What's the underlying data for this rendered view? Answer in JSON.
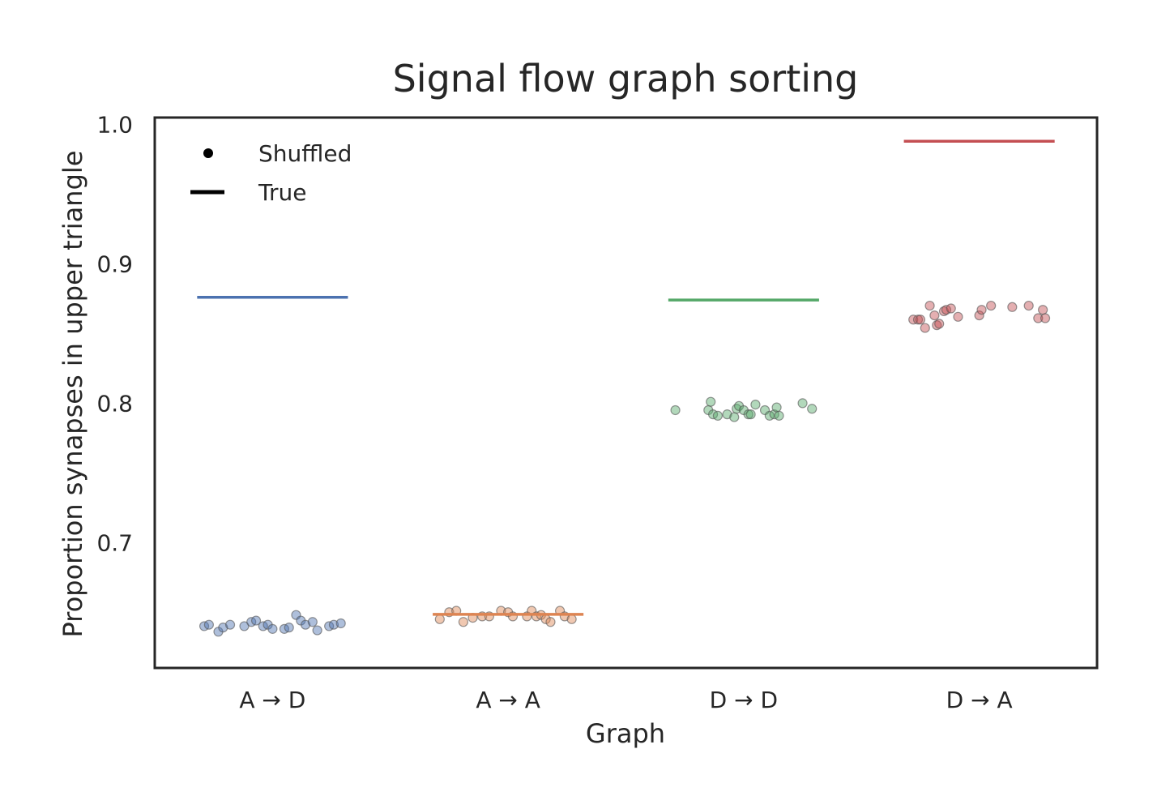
{
  "chart_data": {
    "type": "scatter",
    "title": "Signal flow graph sorting",
    "xlabel": "Graph",
    "ylabel": "Proportion synapses in upper triangle",
    "categories": [
      "A → D",
      "A → A",
      "D → D",
      "D → A"
    ],
    "ylim": [
      0.61,
      1.005
    ],
    "yticks": [
      0.7,
      0.8,
      0.9,
      1.0
    ],
    "ytick_labels": [
      "0.7",
      "0.8",
      "0.9",
      "1.0"
    ],
    "grid": false,
    "legend": {
      "placement": "top-left",
      "entries": [
        {
          "label": "Shuffled",
          "marker": "dot"
        },
        {
          "label": "True",
          "marker": "line"
        }
      ]
    },
    "colors": [
      "#4c72b0",
      "#dd8452",
      "#55a868",
      "#c44e52"
    ],
    "true_values": [
      0.876,
      0.6485,
      0.874,
      0.988
    ],
    "shuffled": [
      {
        "category": "A → D",
        "offsets": [
          -0.29,
          -0.27,
          -0.23,
          -0.21,
          -0.18,
          -0.12,
          -0.09,
          -0.07,
          -0.04,
          -0.02,
          0.0,
          0.05,
          0.07,
          0.1,
          0.12,
          0.14,
          0.17,
          0.19,
          0.24,
          0.26,
          0.29
        ],
        "values": [
          0.64,
          0.641,
          0.636,
          0.639,
          0.641,
          0.64,
          0.643,
          0.644,
          0.64,
          0.641,
          0.638,
          0.638,
          0.639,
          0.648,
          0.644,
          0.641,
          0.643,
          0.637,
          0.64,
          0.641,
          0.642
        ]
      },
      {
        "category": "A → A",
        "offsets": [
          -0.29,
          -0.25,
          -0.22,
          -0.19,
          -0.15,
          -0.11,
          -0.08,
          -0.03,
          0.0,
          0.02,
          0.08,
          0.1,
          0.12,
          0.14,
          0.16,
          0.18,
          0.22,
          0.24,
          0.27
        ],
        "values": [
          0.645,
          0.65,
          0.651,
          0.643,
          0.646,
          0.647,
          0.647,
          0.651,
          0.65,
          0.647,
          0.647,
          0.651,
          0.647,
          0.648,
          0.645,
          0.643,
          0.651,
          0.647,
          0.645
        ]
      },
      {
        "category": "D → D",
        "offsets": [
          -0.29,
          -0.15,
          -0.14,
          -0.13,
          -0.11,
          -0.07,
          -0.04,
          -0.03,
          -0.02,
          0.0,
          0.02,
          0.03,
          0.05,
          0.09,
          0.11,
          0.13,
          0.14,
          0.15,
          0.25,
          0.29
        ],
        "values": [
          0.795,
          0.795,
          0.801,
          0.792,
          0.791,
          0.792,
          0.79,
          0.796,
          0.798,
          0.795,
          0.792,
          0.792,
          0.799,
          0.795,
          0.791,
          0.792,
          0.797,
          0.791,
          0.8,
          0.796
        ]
      },
      {
        "category": "D → A",
        "offsets": [
          -0.28,
          -0.26,
          -0.25,
          -0.23,
          -0.21,
          -0.19,
          -0.18,
          -0.17,
          -0.15,
          -0.14,
          -0.12,
          -0.09,
          0.0,
          0.01,
          0.05,
          0.14,
          0.21,
          0.25,
          0.27,
          0.28
        ],
        "values": [
          0.86,
          0.86,
          0.86,
          0.854,
          0.87,
          0.863,
          0.856,
          0.857,
          0.866,
          0.867,
          0.868,
          0.862,
          0.863,
          0.867,
          0.87,
          0.869,
          0.87,
          0.861,
          0.867,
          0.861
        ]
      }
    ]
  }
}
